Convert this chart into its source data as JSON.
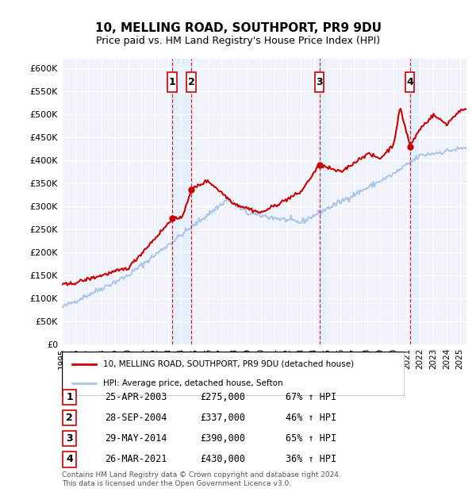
{
  "title": "10, MELLING ROAD, SOUTHPORT, PR9 9DU",
  "subtitle": "Price paid vs. HM Land Registry's House Price Index (HPI)",
  "ylabel_ticks": [
    "£0",
    "£50K",
    "£100K",
    "£150K",
    "£200K",
    "£250K",
    "£300K",
    "£350K",
    "£400K",
    "£450K",
    "£500K",
    "£550K",
    "£600K"
  ],
  "ytick_values": [
    0,
    50000,
    100000,
    150000,
    200000,
    250000,
    300000,
    350000,
    400000,
    450000,
    500000,
    550000,
    600000
  ],
  "hpi_color": "#aec6e8",
  "price_color": "#cc0000",
  "sale_marker_color": "#cc0000",
  "vline_color": "#cc0000",
  "shade_color": "#ddeeff",
  "legend_box_color": "#000000",
  "background_color": "#f0f4fa",
  "grid_color": "#ffffff",
  "sales": [
    {
      "label": "1",
      "date_x": 2003.32,
      "price": 275000
    },
    {
      "label": "2",
      "date_x": 2004.75,
      "price": 337000
    },
    {
      "label": "3",
      "date_x": 2014.41,
      "price": 390000
    },
    {
      "label": "4",
      "date_x": 2021.23,
      "price": 430000
    }
  ],
  "table_rows": [
    {
      "num": "1",
      "date": "25-APR-2003",
      "price": "£275,000",
      "pct": "67% ↑ HPI"
    },
    {
      "num": "2",
      "date": "28-SEP-2004",
      "price": "£337,000",
      "pct": "46% ↑ HPI"
    },
    {
      "num": "3",
      "date": "29-MAY-2014",
      "price": "£390,000",
      "pct": "65% ↑ HPI"
    },
    {
      "num": "4",
      "date": "26-MAR-2021",
      "price": "£430,000",
      "pct": "36% ↑ HPI"
    }
  ],
  "legend_label1": "10, MELLING ROAD, SOUTHPORT, PR9 9DU (detached house)",
  "legend_label2": "HPI: Average price, detached house, Sefton",
  "footer1": "Contains HM Land Registry data © Crown copyright and database right 2024.",
  "footer2": "This data is licensed under the Open Government Licence v3.0.",
  "xmin": 1995.0,
  "xmax": 2025.5
}
